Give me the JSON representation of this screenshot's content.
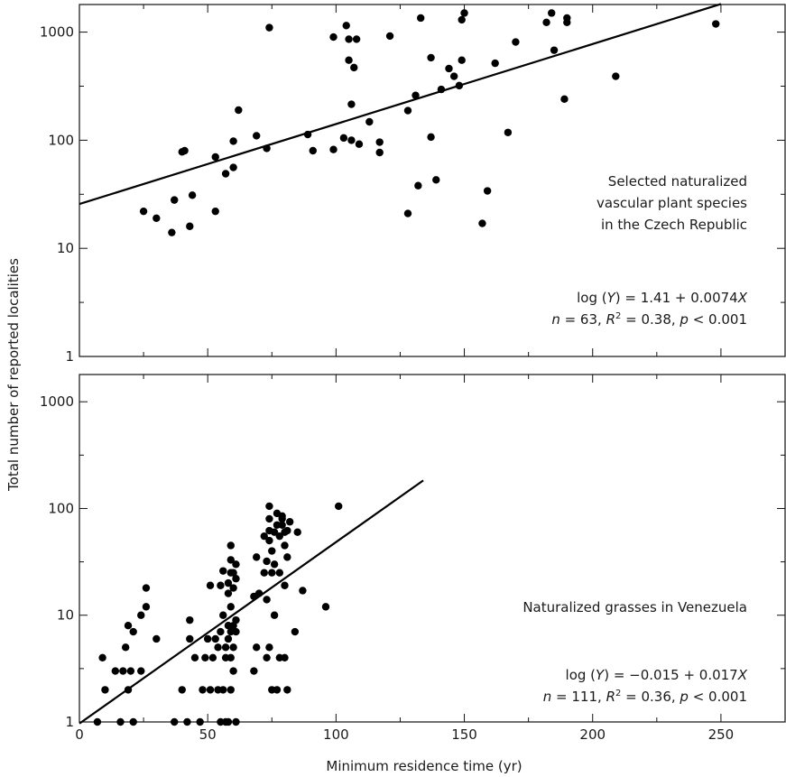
{
  "figure": {
    "ylabel": "Total number of reported localities",
    "xlabel": "Minimum residence time (yr)"
  },
  "chart_data": [
    {
      "type": "scatter",
      "panel": "top",
      "xlim": [
        0,
        275
      ],
      "ylim": [
        1,
        1800
      ],
      "yscale": "log",
      "xticks": [
        0,
        50,
        100,
        150,
        200,
        250
      ],
      "yticks": [
        1,
        10,
        100,
        1000
      ],
      "annotation_lines": [
        "Selected naturalized",
        "vascular plant species",
        "in the Czech Republic"
      ],
      "equation": {
        "prefix": "log (",
        "var_y": "Y",
        "rest": ") = 1.41 + 0.0074",
        "var_x": "X"
      },
      "stats": {
        "n_label": "n",
        "n_rest": " = 63, ",
        "r_label": "R",
        "r_sup": "2",
        "r_rest": " = 0.38, ",
        "p_label": "p",
        "p_rest": " < 0.001"
      },
      "fit": {
        "intercept": 1.41,
        "slope": 0.0074,
        "x_from": 0,
        "x_to": 250
      },
      "points": [
        [
          25,
          22
        ],
        [
          30,
          19
        ],
        [
          36,
          14
        ],
        [
          37,
          28
        ],
        [
          40,
          78
        ],
        [
          41,
          80
        ],
        [
          43,
          16
        ],
        [
          44,
          31
        ],
        [
          53,
          22
        ],
        [
          53,
          70
        ],
        [
          57,
          49
        ],
        [
          60,
          56
        ],
        [
          60,
          98
        ],
        [
          62,
          190
        ],
        [
          69,
          110
        ],
        [
          73,
          84
        ],
        [
          74,
          1100
        ],
        [
          89,
          113
        ],
        [
          91,
          80
        ],
        [
          99,
          82
        ],
        [
          99,
          900
        ],
        [
          103,
          105
        ],
        [
          104,
          1150
        ],
        [
          105,
          550
        ],
        [
          105,
          860
        ],
        [
          106,
          215
        ],
        [
          106,
          100
        ],
        [
          107,
          470
        ],
        [
          108,
          860
        ],
        [
          109,
          92
        ],
        [
          113,
          148
        ],
        [
          117,
          96
        ],
        [
          117,
          77
        ],
        [
          121,
          920
        ],
        [
          128,
          188
        ],
        [
          128,
          21
        ],
        [
          131,
          260
        ],
        [
          132,
          38
        ],
        [
          133,
          1350
        ],
        [
          137,
          580
        ],
        [
          137,
          107
        ],
        [
          139,
          43
        ],
        [
          141,
          295
        ],
        [
          144,
          460
        ],
        [
          146,
          390
        ],
        [
          148,
          320
        ],
        [
          149,
          550
        ],
        [
          149,
          1300
        ],
        [
          150,
          1500
        ],
        [
          157,
          17
        ],
        [
          159,
          34
        ],
        [
          162,
          515
        ],
        [
          167,
          118
        ],
        [
          170,
          810
        ],
        [
          182,
          1230
        ],
        [
          184,
          1500
        ],
        [
          185,
          680
        ],
        [
          189,
          240
        ],
        [
          190,
          1350
        ],
        [
          190,
          1230
        ],
        [
          209,
          390
        ],
        [
          248,
          1190
        ]
      ]
    },
    {
      "type": "scatter",
      "panel": "bottom",
      "xlim": [
        0,
        275
      ],
      "ylim": [
        1,
        1800
      ],
      "yscale": "log",
      "xticks": [
        0,
        50,
        100,
        150,
        200,
        250
      ],
      "yticks": [
        1,
        10,
        100,
        1000
      ],
      "annotation_lines": [
        "Naturalized grasses in Venezuela"
      ],
      "equation": {
        "prefix": "log (",
        "var_y": "Y",
        "rest": ") = −0.015 + 0.017",
        "var_x": "X"
      },
      "stats": {
        "n_label": "n",
        "n_rest": " = 111, ",
        "r_label": "R",
        "r_sup": "2",
        "r_rest": " = 0.36, ",
        "p_label": "p",
        "p_rest": " < 0.001"
      },
      "fit": {
        "intercept": -0.015,
        "slope": 0.017,
        "x_from": 0,
        "x_to": 134
      },
      "points": [
        [
          7,
          1
        ],
        [
          9,
          4
        ],
        [
          10,
          2
        ],
        [
          14,
          3
        ],
        [
          16,
          1
        ],
        [
          17,
          3
        ],
        [
          18,
          5
        ],
        [
          19,
          2
        ],
        [
          19,
          8
        ],
        [
          20,
          3
        ],
        [
          21,
          1
        ],
        [
          21,
          7
        ],
        [
          24,
          3
        ],
        [
          24,
          10
        ],
        [
          26,
          12
        ],
        [
          26,
          18
        ],
        [
          30,
          6
        ],
        [
          37,
          1
        ],
        [
          40,
          2
        ],
        [
          42,
          1
        ],
        [
          43,
          6
        ],
        [
          43,
          9
        ],
        [
          45,
          4
        ],
        [
          47,
          1
        ],
        [
          48,
          2
        ],
        [
          49,
          4
        ],
        [
          50,
          6
        ],
        [
          51,
          2
        ],
        [
          51,
          19
        ],
        [
          52,
          4
        ],
        [
          53,
          6
        ],
        [
          54,
          2
        ],
        [
          54,
          5
        ],
        [
          55,
          1
        ],
        [
          55,
          7
        ],
        [
          55,
          19
        ],
        [
          56,
          2
        ],
        [
          56,
          10
        ],
        [
          56,
          26
        ],
        [
          57,
          1
        ],
        [
          57,
          4
        ],
        [
          57,
          5
        ],
        [
          58,
          1
        ],
        [
          58,
          6
        ],
        [
          58,
          8
        ],
        [
          58,
          16
        ],
        [
          58,
          20
        ],
        [
          59,
          2
        ],
        [
          59,
          4
        ],
        [
          59,
          7
        ],
        [
          59,
          12
        ],
        [
          59,
          25
        ],
        [
          59,
          33
        ],
        [
          59,
          45
        ],
        [
          60,
          3
        ],
        [
          60,
          5
        ],
        [
          60,
          8
        ],
        [
          60,
          18
        ],
        [
          60,
          25
        ],
        [
          61,
          1
        ],
        [
          61,
          7
        ],
        [
          61,
          9
        ],
        [
          61,
          22
        ],
        [
          61,
          30
        ],
        [
          68,
          3
        ],
        [
          68,
          15
        ],
        [
          69,
          5
        ],
        [
          69,
          35
        ],
        [
          70,
          16
        ],
        [
          72,
          25
        ],
        [
          72,
          55
        ],
        [
          73,
          4
        ],
        [
          73,
          14
        ],
        [
          73,
          32
        ],
        [
          74,
          5
        ],
        [
          74,
          50
        ],
        [
          74,
          62
        ],
        [
          74,
          80
        ],
        [
          74,
          105
        ],
        [
          75,
          2
        ],
        [
          75,
          25
        ],
        [
          75,
          40
        ],
        [
          76,
          10
        ],
        [
          76,
          30
        ],
        [
          76,
          60
        ],
        [
          77,
          2
        ],
        [
          77,
          70
        ],
        [
          77,
          90
        ],
        [
          78,
          4
        ],
        [
          78,
          25
        ],
        [
          78,
          55
        ],
        [
          79,
          70
        ],
        [
          79,
          80
        ],
        [
          79,
          85
        ],
        [
          80,
          4
        ],
        [
          80,
          45
        ],
        [
          80,
          60
        ],
        [
          80,
          19
        ],
        [
          81,
          2
        ],
        [
          81,
          35
        ],
        [
          81,
          62
        ],
        [
          82,
          75
        ],
        [
          84,
          7
        ],
        [
          85,
          60
        ],
        [
          87,
          17
        ],
        [
          96,
          12
        ],
        [
          101,
          105
        ]
      ]
    }
  ]
}
